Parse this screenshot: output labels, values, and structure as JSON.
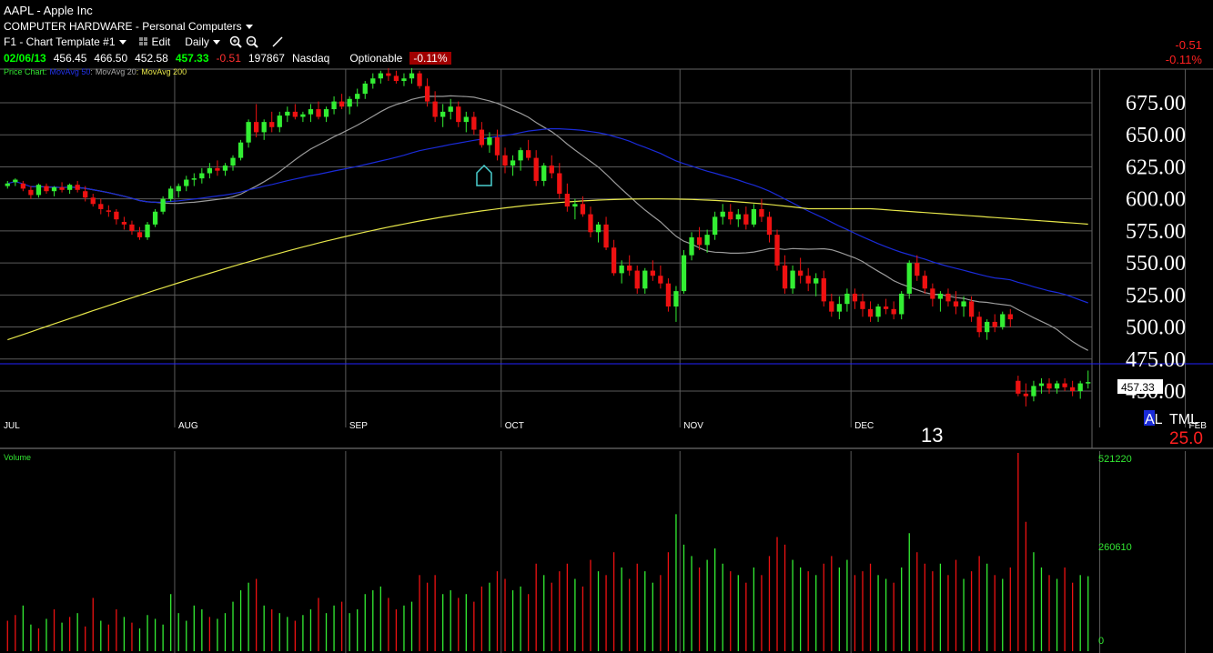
{
  "header": {
    "title": "AAPL - Apple Inc",
    "sector": "COMPUTER HARDWARE - Personal Computers",
    "template": "F1 - Chart Template #1",
    "edit": "Edit",
    "period": "Daily",
    "quote": {
      "date": "02/06/13",
      "open": "456.45",
      "high": "466.50",
      "low": "452.58",
      "last": "457.33",
      "change": "-0.51",
      "volume": "197867",
      "exchange": "Nasdaq",
      "optionable": "Optionable",
      "change_pct": "-0.11%"
    },
    "right_change": "-0.51",
    "right_change_pct": "-0.11%"
  },
  "legend": {
    "price": "Price Chart",
    "ma50": "MovAvg 50",
    "ma20": "MovAvg 20",
    "ma200": "MovAvg 200",
    "sep1": ":",
    "sep2": ":",
    "sep3": ":"
  },
  "right_panel": {
    "al": "AL",
    "tml": "TML",
    "value": "25.0",
    "year_marker": "13",
    "last_price_box": "457.33"
  },
  "volume_panel": {
    "label": "Volume",
    "ticks": [
      "521220",
      "260610",
      "0"
    ]
  },
  "colors": {
    "up": "#33ee33",
    "down": "#ee1111",
    "ma20": "#9a9a9a",
    "ma50": "#1a2bd8",
    "ma200": "#e6e64a",
    "grid": "#5a5a5a",
    "price_line": "#2222ff"
  },
  "chart_data": {
    "type": "candlestick",
    "y_ticks": [
      "675.00",
      "650.00",
      "625.00",
      "600.00",
      "575.00",
      "550.00",
      "525.00",
      "500.00",
      "475.00",
      "450.00"
    ],
    "ylim": [
      440,
      700
    ],
    "months": [
      "JUL",
      "AUG",
      "SEP",
      "OCT",
      "NOV",
      "DEC",
      "FEB"
    ],
    "month_starts": [
      0,
      22,
      44,
      64,
      87,
      109,
      152
    ],
    "last_price": 457.33,
    "candles": [
      [
        610,
        614,
        608,
        612
      ],
      [
        613,
        616,
        610,
        615
      ],
      [
        612,
        614,
        606,
        608
      ],
      [
        607,
        610,
        600,
        603
      ],
      [
        603,
        612,
        601,
        611
      ],
      [
        610,
        612,
        604,
        606
      ],
      [
        606,
        610,
        602,
        609
      ],
      [
        609,
        613,
        605,
        607
      ],
      [
        607,
        612,
        604,
        611
      ],
      [
        611,
        614,
        605,
        607
      ],
      [
        606,
        610,
        598,
        601
      ],
      [
        601,
        604,
        594,
        596
      ],
      [
        596,
        600,
        588,
        592
      ],
      [
        591,
        595,
        586,
        590
      ],
      [
        590,
        592,
        580,
        584
      ],
      [
        582,
        586,
        576,
        580
      ],
      [
        580,
        583,
        572,
        575
      ],
      [
        574,
        578,
        568,
        570
      ],
      [
        570,
        582,
        568,
        580
      ],
      [
        580,
        592,
        578,
        590
      ],
      [
        590,
        602,
        588,
        600
      ],
      [
        600,
        610,
        598,
        608
      ],
      [
        606,
        612,
        601,
        610
      ],
      [
        610,
        618,
        606,
        615
      ],
      [
        615,
        620,
        610,
        616
      ],
      [
        616,
        624,
        612,
        620
      ],
      [
        620,
        628,
        616,
        624
      ],
      [
        624,
        630,
        618,
        622
      ],
      [
        622,
        628,
        618,
        626
      ],
      [
        626,
        634,
        622,
        632
      ],
      [
        632,
        646,
        630,
        644
      ],
      [
        644,
        662,
        640,
        660
      ],
      [
        660,
        674,
        648,
        652
      ],
      [
        652,
        662,
        646,
        660
      ],
      [
        660,
        668,
        652,
        656
      ],
      [
        656,
        668,
        652,
        665
      ],
      [
        665,
        672,
        660,
        668
      ],
      [
        668,
        674,
        662,
        664
      ],
      [
        664,
        668,
        660,
        666
      ],
      [
        666,
        674,
        660,
        670
      ],
      [
        670,
        676,
        662,
        664
      ],
      [
        664,
        672,
        660,
        670
      ],
      [
        670,
        680,
        666,
        676
      ],
      [
        676,
        682,
        670,
        672
      ],
      [
        672,
        680,
        666,
        678
      ],
      [
        678,
        686,
        672,
        682
      ],
      [
        682,
        692,
        678,
        690
      ],
      [
        690,
        698,
        686,
        694
      ],
      [
        694,
        700,
        690,
        698
      ],
      [
        698,
        702,
        692,
        696
      ],
      [
        696,
        700,
        690,
        692
      ],
      [
        692,
        698,
        688,
        694
      ],
      [
        694,
        702,
        690,
        698
      ],
      [
        698,
        700,
        686,
        688
      ],
      [
        688,
        694,
        672,
        676
      ],
      [
        676,
        684,
        660,
        664
      ],
      [
        664,
        674,
        656,
        668
      ],
      [
        668,
        678,
        662,
        672
      ],
      [
        672,
        676,
        656,
        660
      ],
      [
        660,
        668,
        652,
        664
      ],
      [
        664,
        668,
        650,
        654
      ],
      [
        654,
        660,
        640,
        642
      ],
      [
        642,
        652,
        636,
        648
      ],
      [
        648,
        654,
        630,
        634
      ],
      [
        634,
        640,
        620,
        626
      ],
      [
        626,
        634,
        618,
        630
      ],
      [
        630,
        640,
        622,
        638
      ],
      [
        638,
        646,
        630,
        632
      ],
      [
        632,
        638,
        610,
        614
      ],
      [
        614,
        628,
        610,
        626
      ],
      [
        626,
        634,
        616,
        620
      ],
      [
        620,
        628,
        600,
        604
      ],
      [
        604,
        612,
        590,
        594
      ],
      [
        594,
        600,
        584,
        596
      ],
      [
        596,
        602,
        586,
        588
      ],
      [
        588,
        594,
        570,
        574
      ],
      [
        574,
        582,
        566,
        580
      ],
      [
        580,
        586,
        560,
        562
      ],
      [
        562,
        568,
        540,
        542
      ],
      [
        542,
        552,
        534,
        548
      ],
      [
        548,
        556,
        540,
        544
      ],
      [
        544,
        548,
        526,
        530
      ],
      [
        530,
        546,
        526,
        544
      ],
      [
        544,
        552,
        536,
        540
      ],
      [
        540,
        548,
        530,
        534
      ],
      [
        534,
        538,
        512,
        516
      ],
      [
        516,
        532,
        504,
        528
      ],
      [
        528,
        560,
        526,
        556
      ],
      [
        556,
        574,
        552,
        570
      ],
      [
        570,
        578,
        560,
        564
      ],
      [
        564,
        576,
        558,
        572
      ],
      [
        572,
        590,
        568,
        586
      ],
      [
        586,
        596,
        580,
        590
      ],
      [
        590,
        596,
        580,
        584
      ],
      [
        584,
        592,
        578,
        588
      ],
      [
        588,
        594,
        576,
        580
      ],
      [
        580,
        596,
        578,
        592
      ],
      [
        592,
        600,
        582,
        586
      ],
      [
        586,
        590,
        566,
        572
      ],
      [
        572,
        576,
        544,
        548
      ],
      [
        548,
        556,
        526,
        530
      ],
      [
        530,
        548,
        526,
        544
      ],
      [
        544,
        554,
        534,
        540
      ],
      [
        540,
        546,
        528,
        534
      ],
      [
        534,
        542,
        524,
        538
      ],
      [
        538,
        544,
        516,
        520
      ],
      [
        520,
        526,
        508,
        512
      ],
      [
        512,
        524,
        506,
        518
      ],
      [
        518,
        530,
        512,
        526
      ],
      [
        526,
        530,
        514,
        520
      ],
      [
        520,
        526,
        508,
        514
      ],
      [
        514,
        520,
        504,
        508
      ],
      [
        508,
        518,
        504,
        516
      ],
      [
        516,
        522,
        510,
        514
      ],
      [
        514,
        520,
        506,
        510
      ],
      [
        510,
        528,
        506,
        526
      ],
      [
        526,
        552,
        522,
        550
      ],
      [
        550,
        556,
        536,
        540
      ],
      [
        540,
        544,
        526,
        530
      ],
      [
        530,
        534,
        516,
        522
      ],
      [
        522,
        528,
        512,
        526
      ],
      [
        526,
        530,
        516,
        520
      ],
      [
        520,
        528,
        510,
        516
      ],
      [
        516,
        524,
        508,
        520
      ],
      [
        520,
        524,
        504,
        508
      ],
      [
        508,
        512,
        492,
        496
      ],
      [
        496,
        506,
        490,
        504
      ],
      [
        504,
        510,
        496,
        500
      ],
      [
        500,
        512,
        498,
        510
      ],
      [
        510,
        514,
        500,
        506
      ],
      [
        458,
        462,
        446,
        448
      ],
      [
        448,
        456,
        438,
        446
      ],
      [
        446,
        458,
        442,
        454
      ],
      [
        454,
        460,
        448,
        456
      ],
      [
        456,
        460,
        448,
        452
      ],
      [
        452,
        458,
        448,
        456
      ],
      [
        456,
        460,
        450,
        453
      ],
      [
        453,
        458,
        446,
        450
      ],
      [
        450,
        458,
        444,
        456
      ],
      [
        456,
        466,
        452,
        457
      ]
    ],
    "volume": [
      [
        80,
        0
      ],
      [
        95,
        0
      ],
      [
        120,
        1
      ],
      [
        70,
        1
      ],
      [
        60,
        0
      ],
      [
        85,
        1
      ],
      [
        110,
        0
      ],
      [
        75,
        1
      ],
      [
        90,
        0
      ],
      [
        100,
        1
      ],
      [
        65,
        0
      ],
      [
        140,
        0
      ],
      [
        80,
        1
      ],
      [
        70,
        0
      ],
      [
        110,
        0
      ],
      [
        90,
        1
      ],
      [
        75,
        0
      ],
      [
        60,
        1
      ],
      [
        95,
        1
      ],
      [
        85,
        1
      ],
      [
        70,
        1
      ],
      [
        150,
        1
      ],
      [
        100,
        1
      ],
      [
        80,
        1
      ],
      [
        120,
        1
      ],
      [
        110,
        1
      ],
      [
        90,
        0
      ],
      [
        85,
        1
      ],
      [
        100,
        1
      ],
      [
        130,
        1
      ],
      [
        160,
        1
      ],
      [
        180,
        1
      ],
      [
        190,
        0
      ],
      [
        120,
        1
      ],
      [
        110,
        0
      ],
      [
        100,
        1
      ],
      [
        90,
        1
      ],
      [
        80,
        0
      ],
      [
        95,
        1
      ],
      [
        110,
        1
      ],
      [
        140,
        0
      ],
      [
        100,
        1
      ],
      [
        120,
        1
      ],
      [
        130,
        0
      ],
      [
        100,
        1
      ],
      [
        110,
        1
      ],
      [
        150,
        1
      ],
      [
        160,
        1
      ],
      [
        170,
        1
      ],
      [
        140,
        0
      ],
      [
        110,
        0
      ],
      [
        120,
        1
      ],
      [
        130,
        1
      ],
      [
        200,
        0
      ],
      [
        180,
        0
      ],
      [
        200,
        0
      ],
      [
        150,
        1
      ],
      [
        160,
        1
      ],
      [
        140,
        0
      ],
      [
        150,
        1
      ],
      [
        130,
        0
      ],
      [
        170,
        0
      ],
      [
        180,
        1
      ],
      [
        210,
        0
      ],
      [
        190,
        0
      ],
      [
        160,
        1
      ],
      [
        170,
        1
      ],
      [
        150,
        0
      ],
      [
        230,
        0
      ],
      [
        200,
        1
      ],
      [
        180,
        0
      ],
      [
        210,
        0
      ],
      [
        230,
        0
      ],
      [
        190,
        1
      ],
      [
        170,
        0
      ],
      [
        240,
        0
      ],
      [
        210,
        1
      ],
      [
        200,
        0
      ],
      [
        260,
        0
      ],
      [
        220,
        1
      ],
      [
        190,
        0
      ],
      [
        230,
        0
      ],
      [
        210,
        1
      ],
      [
        180,
        1
      ],
      [
        200,
        0
      ],
      [
        260,
        0
      ],
      [
        360,
        1
      ],
      [
        280,
        1
      ],
      [
        250,
        1
      ],
      [
        220,
        0
      ],
      [
        240,
        1
      ],
      [
        270,
        1
      ],
      [
        230,
        1
      ],
      [
        210,
        0
      ],
      [
        200,
        1
      ],
      [
        180,
        0
      ],
      [
        220,
        1
      ],
      [
        200,
        0
      ],
      [
        250,
        0
      ],
      [
        300,
        0
      ],
      [
        280,
        0
      ],
      [
        240,
        1
      ],
      [
        220,
        1
      ],
      [
        210,
        0
      ],
      [
        200,
        1
      ],
      [
        230,
        0
      ],
      [
        250,
        0
      ],
      [
        220,
        1
      ],
      [
        240,
        1
      ],
      [
        200,
        0
      ],
      [
        210,
        0
      ],
      [
        230,
        0
      ],
      [
        200,
        1
      ],
      [
        190,
        1
      ],
      [
        180,
        0
      ],
      [
        220,
        1
      ],
      [
        310,
        1
      ],
      [
        260,
        0
      ],
      [
        230,
        0
      ],
      [
        210,
        0
      ],
      [
        230,
        1
      ],
      [
        200,
        0
      ],
      [
        240,
        0
      ],
      [
        190,
        1
      ],
      [
        210,
        0
      ],
      [
        250,
        0
      ],
      [
        230,
        1
      ],
      [
        200,
        0
      ],
      [
        190,
        1
      ],
      [
        220,
        0
      ],
      [
        521,
        0
      ],
      [
        340,
        0
      ],
      [
        260,
        1
      ],
      [
        220,
        1
      ],
      [
        200,
        0
      ],
      [
        190,
        1
      ],
      [
        220,
        0
      ],
      [
        180,
        0
      ],
      [
        200,
        1
      ],
      [
        197,
        1
      ]
    ]
  }
}
